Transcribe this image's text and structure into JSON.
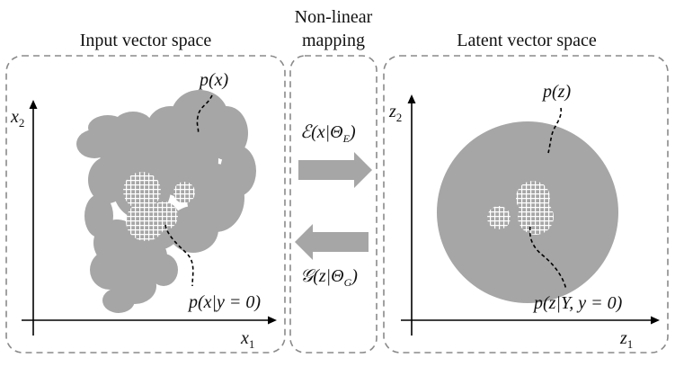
{
  "titles": {
    "input_space": "Input vector space",
    "mapping_line1": "Non-linear",
    "mapping_line2": "mapping",
    "latent_space": "Latent vector space"
  },
  "input_panel": {
    "axis_x": "x",
    "axis_x_sub": "1",
    "axis_y": "x",
    "axis_y_sub": "2",
    "dist_label": "p(x)",
    "cond_label": "p(x|y = 0)"
  },
  "mapping_panel": {
    "encoder_label": "ℰ(x|Θ",
    "encoder_sub": "E",
    "decoder_label": "𝒢(z|Θ",
    "decoder_sub": "G"
  },
  "latent_panel": {
    "axis_x": "z",
    "axis_x_sub": "1",
    "axis_y": "z",
    "axis_y_sub": "2",
    "dist_label": "p(z)",
    "cond_label": "p(z|Υ, y = 0)"
  },
  "colors": {
    "region_fill": "#a6a6a6",
    "hatch_fill": "#ffffff",
    "arrow_fill": "#a6a6a6",
    "panel_border": "#8a8a8a"
  }
}
